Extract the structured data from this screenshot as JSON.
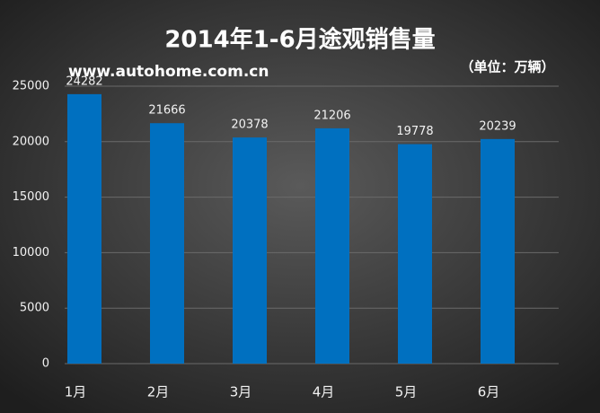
{
  "chart_data": {
    "type": "bar",
    "title": "2014年1-6月途观销售量",
    "watermark": "www.autohome.com.cn",
    "unit": "（单位：万辆）",
    "categories": [
      "1月",
      "2月",
      "3月",
      "4月",
      "5月",
      "6月"
    ],
    "values": [
      24282,
      21666,
      20378,
      21206,
      19778,
      20239
    ],
    "color": "#0070c0",
    "ylim": [
      0,
      25000
    ],
    "yticks": [
      0,
      5000,
      10000,
      15000,
      20000,
      25000
    ],
    "grid": true
  }
}
